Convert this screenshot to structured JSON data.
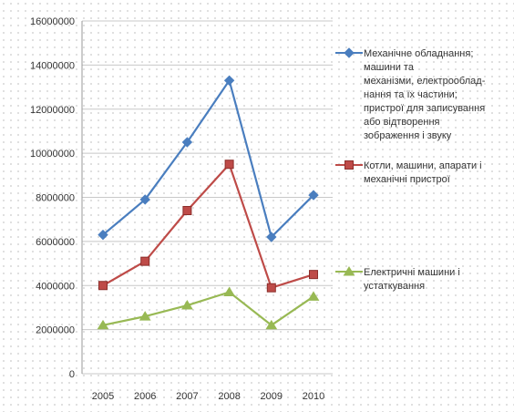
{
  "chart_data": {
    "type": "line",
    "categories": [
      "2005",
      "2006",
      "2007",
      "2008",
      "2009",
      "2010"
    ],
    "ylim": [
      0,
      16000000
    ],
    "yticks": [
      0,
      2000000,
      4000000,
      6000000,
      8000000,
      10000000,
      12000000,
      14000000,
      16000000
    ],
    "ytick_labels": [
      "0",
      "2000000",
      "4000000",
      "6000000",
      "8000000",
      "10000000",
      "12000000",
      "14000000",
      "16000000"
    ],
    "grid": true,
    "legend_position": "right",
    "series": [
      {
        "name_lines": [
          "Механічне обладнання;",
          "машини та",
          "механізми, електрооблад-",
          "нання та їх частини;",
          "пристрої для записування",
          "або відтворення",
          "зображення і звуку"
        ],
        "values": [
          6300000,
          7900000,
          10500000,
          13300000,
          6200000,
          8100000
        ],
        "color": "#4a7ebf",
        "marker": "diamond"
      },
      {
        "name_lines": [
          "Котли, машини, апарати і",
          "механічні пристрої"
        ],
        "values": [
          4000000,
          5100000,
          7400000,
          9500000,
          3900000,
          4500000
        ],
        "color": "#be4b48",
        "marker": "square"
      },
      {
        "name_lines": [
          " Електричні машини і",
          "устаткування"
        ],
        "values": [
          2200000,
          2600000,
          3100000,
          3700000,
          2200000,
          3500000
        ],
        "color": "#98b954",
        "marker": "triangle"
      }
    ]
  }
}
